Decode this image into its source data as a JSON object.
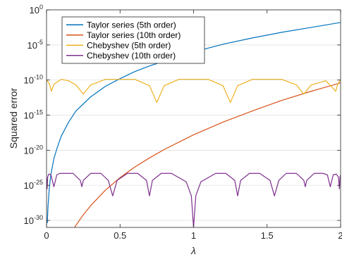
{
  "chart_data": {
    "type": "line",
    "xlabel": "λ",
    "ylabel": "Squared error",
    "xlim": [
      0,
      2
    ],
    "ylim_log10": [
      -31,
      0
    ],
    "y_scale": "log",
    "grid": "horizontal",
    "legend_position": "top-left",
    "x_ticks": [
      "0",
      "0.5",
      "1",
      "1.5",
      "2"
    ],
    "y_ticks": [
      {
        "base": "10",
        "exp": "0"
      },
      {
        "base": "10",
        "exp": "-5"
      },
      {
        "base": "10",
        "exp": "-10"
      },
      {
        "base": "10",
        "exp": "-15"
      },
      {
        "base": "10",
        "exp": "-20"
      },
      {
        "base": "10",
        "exp": "-25"
      },
      {
        "base": "10",
        "exp": "-30"
      }
    ],
    "series": [
      {
        "name": "Taylor series (5th order)",
        "color": "#0072BD",
        "x": [
          0.005,
          0.01,
          0.02,
          0.03,
          0.05,
          0.07,
          0.1,
          0.15,
          0.2,
          0.3,
          0.4,
          0.5,
          0.6,
          0.7,
          0.8,
          1.0,
          1.2,
          1.4,
          1.6,
          1.8,
          2.0
        ],
        "y_log10": [
          -30.4,
          -28.0,
          -25.1,
          -23.4,
          -21.2,
          -19.8,
          -18.0,
          -16.0,
          -14.4,
          -12.4,
          -10.9,
          -9.8,
          -8.8,
          -8.0,
          -7.3,
          -6.0,
          -4.9,
          -4.0,
          -3.2,
          -2.5,
          -1.8
        ]
      },
      {
        "name": "Taylor series (10th order)",
        "color": "#D95319",
        "x": [
          0.19,
          0.25,
          0.3,
          0.4,
          0.5,
          0.6,
          0.7,
          0.8,
          1.0,
          1.2,
          1.4,
          1.6,
          1.8,
          2.0
        ],
        "y_log10": [
          -31.0,
          -29.2,
          -27.9,
          -25.7,
          -23.9,
          -22.4,
          -21.1,
          -19.9,
          -17.8,
          -16.0,
          -14.4,
          -12.9,
          -11.6,
          -10.4
        ]
      },
      {
        "name": "Chebyshev (5th order)",
        "color": "#EDB120",
        "x": [
          0,
          0.02,
          0.033,
          0.05,
          0.1,
          0.15,
          0.2,
          0.25,
          0.3,
          0.4,
          0.5,
          0.6,
          0.7,
          0.75,
          0.8,
          0.9,
          1.0,
          1.1,
          1.2,
          1.25,
          1.3,
          1.4,
          1.5,
          1.6,
          1.7,
          1.75,
          1.8,
          1.9,
          1.967,
          1.98,
          2.0
        ],
        "y_log10": [
          -9.9,
          -10.6,
          -11.6,
          -10.6,
          -9.9,
          -10.1,
          -10.7,
          -12.0,
          -10.7,
          -9.9,
          -9.9,
          -9.9,
          -10.8,
          -13.2,
          -10.8,
          -9.9,
          -9.9,
          -9.9,
          -10.8,
          -13.2,
          -10.8,
          -9.9,
          -9.9,
          -9.9,
          -10.7,
          -12.0,
          -10.7,
          -10.1,
          -11.6,
          -10.6,
          -9.9
        ]
      },
      {
        "name": "Chebyshev (10th order)",
        "color": "#7E2F8E",
        "x": [
          0,
          0.004,
          0.008,
          0.015,
          0.03,
          0.05,
          0.07,
          0.09,
          0.12,
          0.18,
          0.23,
          0.24,
          0.25,
          0.3,
          0.37,
          0.42,
          0.45,
          0.48,
          0.55,
          0.62,
          0.68,
          0.7,
          0.72,
          0.78,
          0.85,
          0.95,
          0.985,
          1.0,
          1.015,
          1.05,
          1.15,
          1.22,
          1.28,
          1.3,
          1.32,
          1.38,
          1.45,
          1.52,
          1.55,
          1.58,
          1.63,
          1.7,
          1.75,
          1.76,
          1.77,
          1.82,
          1.88,
          1.91,
          1.93,
          1.95,
          1.97,
          1.985,
          1.992,
          1.996,
          2.0
        ],
        "y_log10": [
          -23.8,
          -25.5,
          -23.8,
          -23.4,
          -23.5,
          -25.2,
          -23.5,
          -23.3,
          -23.3,
          -23.3,
          -24.3,
          -25.2,
          -24.3,
          -23.3,
          -23.3,
          -24.3,
          -26.5,
          -24.3,
          -23.3,
          -23.3,
          -24.3,
          -26.5,
          -24.3,
          -23.3,
          -23.3,
          -24.5,
          -26.5,
          -31.0,
          -26.5,
          -24.5,
          -23.3,
          -23.3,
          -24.3,
          -26.5,
          -24.3,
          -23.3,
          -23.3,
          -24.3,
          -26.5,
          -24.3,
          -23.3,
          -23.3,
          -24.3,
          -25.2,
          -24.3,
          -23.3,
          -23.3,
          -23.5,
          -25.2,
          -23.5,
          -23.4,
          -23.8,
          -25.5,
          -23.8,
          -23.5
        ]
      }
    ]
  }
}
